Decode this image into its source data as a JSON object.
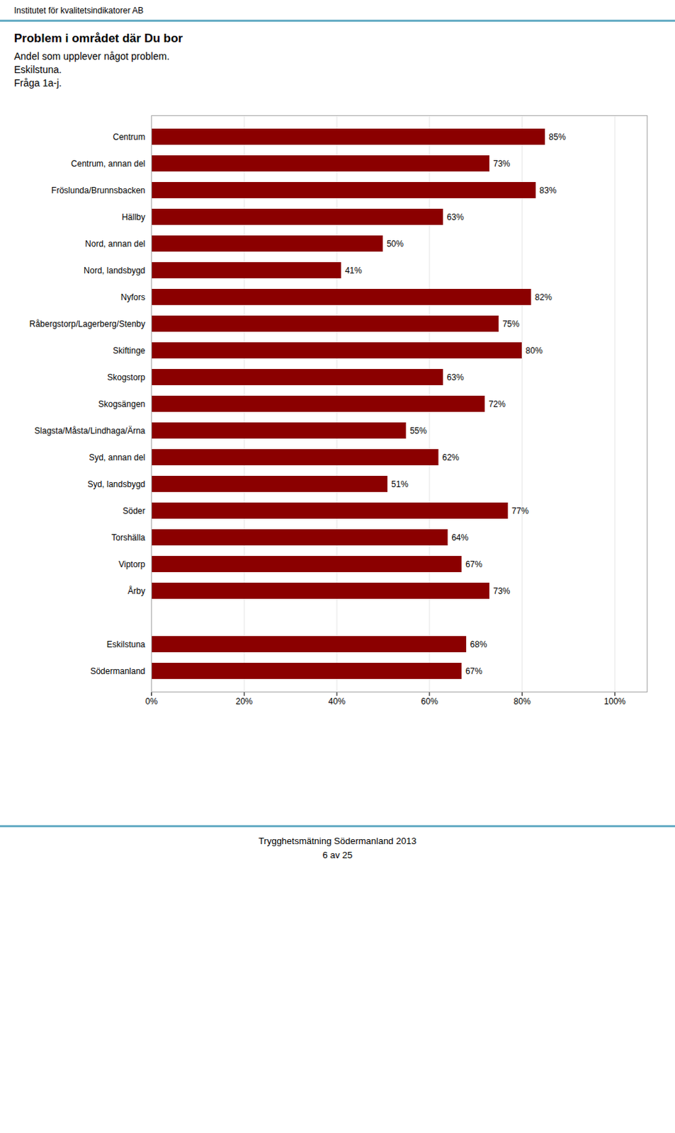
{
  "chart_data": {
    "type": "bar",
    "orientation": "horizontal",
    "header": "Institutet för kvalitetsindikatorer AB",
    "title": "Problem i området där Du bor",
    "subtitle": [
      "Andel som upplever något problem.",
      "Eskilstuna.",
      "Fråga 1a-j."
    ],
    "footer": [
      "Trygghetsmätning Södermanland 2013",
      "6 av 25"
    ],
    "categories": [
      "Centrum",
      "Centrum, annan del",
      "Fröslunda/Brunnsbacken",
      "Hällby",
      "Nord, annan del",
      "Nord, landsbygd",
      "Nyfors",
      "Råbergstorp/Lagerberg/Stenby",
      "Skiftinge",
      "Skogstorp",
      "Skogsängen",
      "Slagsta/Måsta/Lindhaga/Ärna",
      "Syd, annan del",
      "Syd, landsbygd",
      "Söder",
      "Torshälla",
      "Viptorp",
      "Årby",
      null,
      "Eskilstuna",
      "Södermanland"
    ],
    "values": [
      85,
      73,
      83,
      63,
      50,
      41,
      82,
      75,
      80,
      63,
      72,
      55,
      62,
      51,
      77,
      64,
      67,
      73,
      null,
      68,
      67
    ],
    "value_labels": [
      "85%",
      "73%",
      "83%",
      "63%",
      "50%",
      "41%",
      "82%",
      "75%",
      "80%",
      "63%",
      "72%",
      "55%",
      "62%",
      "51%",
      "77%",
      "64%",
      "67%",
      "73%",
      null,
      "68%",
      "67%"
    ],
    "data_labels": true,
    "color": "#8B0000",
    "xlim": [
      0,
      107
    ],
    "xticks": [
      {
        "value": 0,
        "label": "0%"
      },
      {
        "value": 20,
        "label": "20%"
      },
      {
        "value": 40,
        "label": "40%"
      },
      {
        "value": 60,
        "label": "60%"
      },
      {
        "value": 80,
        "label": "80%"
      },
      {
        "value": 100,
        "label": "100%"
      }
    ],
    "grid": true
  }
}
